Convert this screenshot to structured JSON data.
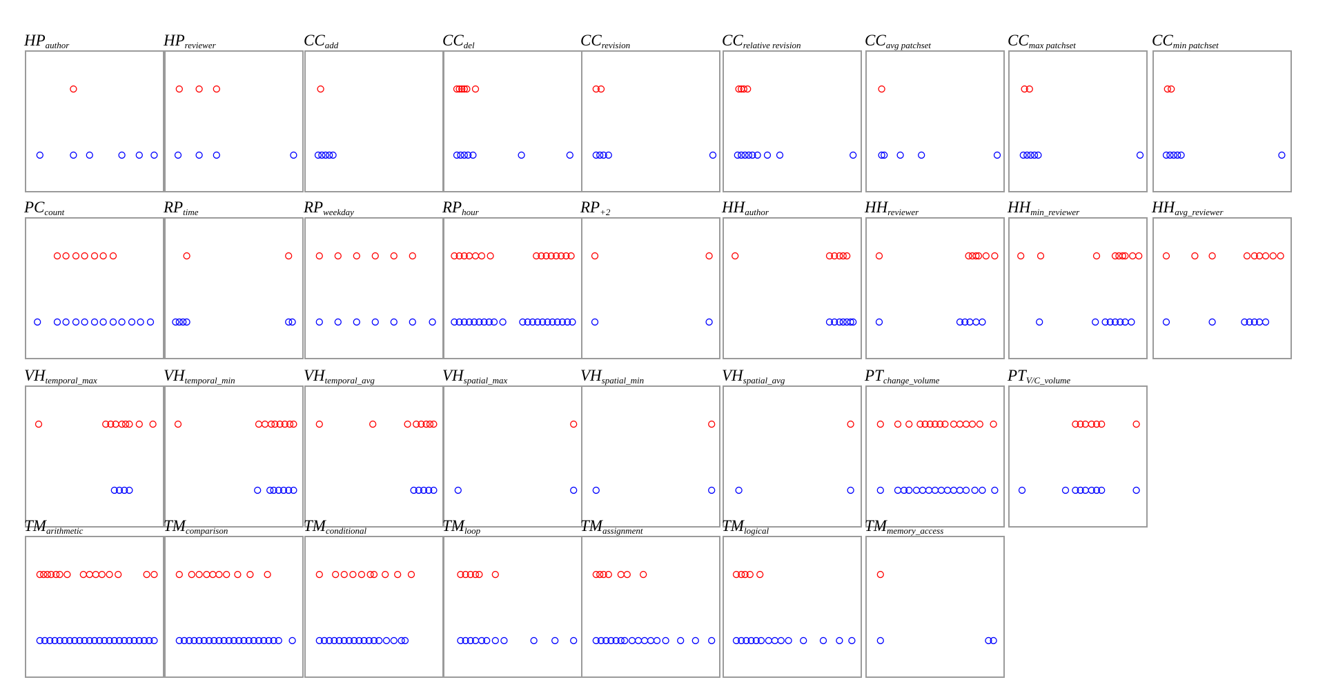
{
  "chart_data": [
    {
      "type": "strip",
      "title": "HP",
      "title_sub": "author",
      "xlim": [
        0,
        100
      ],
      "series": [
        {
          "color": "#ff0000",
          "values": [
            33
          ]
        },
        {
          "color": "#0000ff",
          "values": [
            6,
            33,
            46,
            72,
            86,
            98
          ]
        }
      ]
    },
    {
      "type": "strip",
      "title": "HP",
      "title_sub": "reviewer",
      "xlim": [
        0,
        100
      ],
      "series": [
        {
          "color": "#ff0000",
          "values": [
            6,
            22,
            36
          ]
        },
        {
          "color": "#0000ff",
          "values": [
            5,
            22,
            36,
            98
          ]
        }
      ]
    },
    {
      "type": "strip",
      "title": "CC",
      "title_sub": "add",
      "xlim": [
        0,
        100
      ],
      "series": [
        {
          "color": "#ff0000",
          "values": [
            7
          ]
        },
        {
          "color": "#0000ff",
          "values": [
            5,
            8,
            11,
            14,
            17
          ]
        }
      ]
    },
    {
      "type": "strip",
      "title": "CC",
      "title_sub": "del",
      "xlim": [
        0,
        100
      ],
      "series": [
        {
          "color": "#ff0000",
          "values": [
            5,
            7,
            9,
            11,
            13,
            20
          ]
        },
        {
          "color": "#0000ff",
          "values": [
            5,
            8,
            11,
            14,
            18,
            57,
            96
          ]
        }
      ]
    },
    {
      "type": "strip",
      "title": "CC",
      "title_sub": "revision",
      "xlim": [
        0,
        100
      ],
      "series": [
        {
          "color": "#ff0000",
          "values": [
            6,
            10
          ]
        },
        {
          "color": "#0000ff",
          "values": [
            6,
            9,
            12,
            16,
            100
          ]
        }
      ]
    },
    {
      "type": "strip",
      "title": "CC",
      "title_sub": "relative revision",
      "xlim": [
        0,
        100
      ],
      "series": [
        {
          "color": "#ff0000",
          "values": [
            7,
            9,
            11,
            14
          ]
        },
        {
          "color": "#0000ff",
          "values": [
            6,
            9,
            12,
            15,
            18,
            22,
            30,
            40,
            99
          ]
        }
      ]
    },
    {
      "type": "strip",
      "title": "CC",
      "title_sub": "avg patchset",
      "xlim": [
        0,
        100
      ],
      "series": [
        {
          "color": "#ff0000",
          "values": [
            7
          ]
        },
        {
          "color": "#0000ff",
          "values": [
            7,
            9,
            22,
            39,
            100
          ]
        }
      ]
    },
    {
      "type": "strip",
      "title": "CC",
      "title_sub": "max patchset",
      "xlim": [
        0,
        100
      ],
      "series": [
        {
          "color": "#ff0000",
          "values": [
            7,
            11
          ]
        },
        {
          "color": "#0000ff",
          "values": [
            6,
            9,
            12,
            15,
            18,
            100
          ]
        }
      ]
    },
    {
      "type": "strip",
      "title": "CC",
      "title_sub": "min patchset",
      "xlim": [
        0,
        100
      ],
      "series": [
        {
          "color": "#ff0000",
          "values": [
            6,
            9
          ]
        },
        {
          "color": "#0000ff",
          "values": [
            5,
            8,
            11,
            14,
            17,
            98
          ]
        }
      ]
    },
    {
      "type": "strip",
      "title": "PC",
      "title_sub": "count",
      "xlim": [
        0,
        100
      ],
      "series": [
        {
          "color": "#ff0000",
          "values": [
            20,
            27,
            35,
            42,
            50,
            57,
            65
          ]
        },
        {
          "color": "#0000ff",
          "values": [
            4,
            20,
            27,
            35,
            42,
            50,
            57,
            65,
            72,
            80,
            87,
            95
          ]
        }
      ]
    },
    {
      "type": "strip",
      "title": "RP",
      "title_sub": "time",
      "xlim": [
        0,
        100
      ],
      "series": [
        {
          "color": "#ff0000",
          "values": [
            12,
            94
          ]
        },
        {
          "color": "#0000ff",
          "values": [
            3,
            6,
            9,
            12,
            94,
            97
          ]
        }
      ]
    },
    {
      "type": "strip",
      "title": "RP",
      "title_sub": "weekday",
      "xlim": [
        0,
        100
      ],
      "series": [
        {
          "color": "#ff0000",
          "values": [
            6,
            21,
            36,
            51,
            66,
            81
          ]
        },
        {
          "color": "#0000ff",
          "values": [
            6,
            21,
            36,
            51,
            66,
            81,
            97
          ]
        }
      ]
    },
    {
      "type": "strip",
      "title": "RP",
      "title_sub": "hour",
      "xlim": [
        0,
        100
      ],
      "series": [
        {
          "color": "#ff0000",
          "values": [
            3,
            7,
            11,
            15,
            20,
            25,
            32,
            69,
            73,
            77,
            81,
            85,
            89,
            93,
            97
          ]
        },
        {
          "color": "#0000ff",
          "values": [
            3,
            7,
            11,
            15,
            19,
            23,
            27,
            31,
            35,
            42,
            58,
            62,
            66,
            70,
            74,
            78,
            82,
            86,
            90,
            94,
            98
          ]
        }
      ]
    },
    {
      "type": "strip",
      "title": "RP",
      "title_sub": "+2",
      "xlim": [
        0,
        100
      ],
      "series": [
        {
          "color": "#ff0000",
          "values": [
            5,
            97
          ]
        },
        {
          "color": "#0000ff",
          "values": [
            5,
            97
          ]
        }
      ]
    },
    {
      "type": "strip",
      "title": "HH",
      "title_sub": "author",
      "xlim": [
        0,
        100
      ],
      "series": [
        {
          "color": "#ff0000",
          "values": [
            4,
            80,
            84,
            88,
            91,
            94
          ]
        },
        {
          "color": "#0000ff",
          "values": [
            80,
            84,
            88,
            91,
            94,
            97,
            99
          ]
        }
      ]
    },
    {
      "type": "strip",
      "title": "HH",
      "title_sub": "reviewer",
      "xlim": [
        0,
        100
      ],
      "series": [
        {
          "color": "#ff0000",
          "values": [
            5,
            77,
            80,
            83,
            85,
            91,
            98
          ]
        },
        {
          "color": "#0000ff",
          "values": [
            5,
            70,
            74,
            78,
            83,
            88
          ]
        }
      ]
    },
    {
      "type": "strip",
      "title": "HH",
      "title_sub": "min_reviewer",
      "xlim": [
        0,
        100
      ],
      "series": [
        {
          "color": "#ff0000",
          "values": [
            4,
            20,
            65,
            80,
            83,
            86,
            88,
            94,
            99
          ]
        },
        {
          "color": "#0000ff",
          "values": [
            19,
            64,
            72,
            76,
            80,
            84,
            88,
            93
          ]
        }
      ]
    },
    {
      "type": "strip",
      "title": "HH",
      "title_sub": "avg_reviewer",
      "xlim": [
        0,
        100
      ],
      "series": [
        {
          "color": "#ff0000",
          "values": [
            5,
            28,
            42,
            70,
            76,
            80,
            85,
            91,
            97
          ]
        },
        {
          "color": "#0000ff",
          "values": [
            5,
            42,
            68,
            72,
            76,
            80,
            85
          ]
        }
      ]
    },
    {
      "type": "strip",
      "title": "VH",
      "title_sub": "temporal_max",
      "xlim": [
        0,
        100
      ],
      "series": [
        {
          "color": "#ff0000",
          "values": [
            5,
            59,
            63,
            67,
            72,
            75,
            78,
            86,
            97
          ]
        },
        {
          "color": "#0000ff",
          "values": [
            66,
            70,
            74,
            78
          ]
        }
      ]
    },
    {
      "type": "strip",
      "title": "VH",
      "title_sub": "temporal_min",
      "xlim": [
        0,
        100
      ],
      "series": [
        {
          "color": "#ff0000",
          "values": [
            5,
            70,
            75,
            80,
            83,
            87,
            91,
            95,
            98
          ]
        },
        {
          "color": "#0000ff",
          "values": [
            69,
            79,
            82,
            86,
            90,
            94,
            98
          ]
        }
      ]
    },
    {
      "type": "strip",
      "title": "VH",
      "title_sub": "temporal_avg",
      "xlim": [
        0,
        100
      ],
      "series": [
        {
          "color": "#ff0000",
          "values": [
            6,
            49,
            77,
            84,
            88,
            92,
            95,
            98
          ]
        },
        {
          "color": "#0000ff",
          "values": [
            82,
            86,
            90,
            94,
            98
          ]
        }
      ]
    },
    {
      "type": "strip",
      "title": "VH",
      "title_sub": "spatial_max",
      "xlim": [
        0,
        100
      ],
      "series": [
        {
          "color": "#ff0000",
          "values": [
            99
          ]
        },
        {
          "color": "#0000ff",
          "values": [
            6,
            99
          ]
        }
      ]
    },
    {
      "type": "strip",
      "title": "VH",
      "title_sub": "spatial_min",
      "xlim": [
        0,
        100
      ],
      "series": [
        {
          "color": "#ff0000",
          "values": [
            99
          ]
        },
        {
          "color": "#0000ff",
          "values": [
            6,
            99
          ]
        }
      ]
    },
    {
      "type": "strip",
      "title": "VH",
      "title_sub": "spatial_avg",
      "xlim": [
        0,
        100
      ],
      "series": [
        {
          "color": "#ff0000",
          "values": [
            97
          ]
        },
        {
          "color": "#0000ff",
          "values": [
            7,
            97
          ]
        }
      ]
    },
    {
      "type": "strip",
      "title": "PT",
      "title_sub": "change_volume",
      "xlim": [
        0,
        100
      ],
      "series": [
        {
          "color": "#ff0000",
          "values": [
            6,
            20,
            29,
            38,
            42,
            46,
            50,
            54,
            58,
            65,
            70,
            75,
            80,
            86,
            97
          ]
        },
        {
          "color": "#0000ff",
          "values": [
            6,
            20,
            25,
            29,
            35,
            40,
            45,
            50,
            55,
            60,
            65,
            70,
            75,
            82,
            88,
            98
          ]
        }
      ]
    },
    {
      "type": "strip",
      "title": "PT",
      "title_sub": "V/C_volume",
      "xlim": [
        0,
        100
      ],
      "series": [
        {
          "color": "#ff0000",
          "values": [
            48,
            52,
            56,
            61,
            65,
            69,
            97
          ]
        },
        {
          "color": "#0000ff",
          "values": [
            5,
            40,
            48,
            52,
            56,
            61,
            65,
            69,
            97
          ]
        }
      ]
    },
    {
      "type": "strip",
      "title": "TM",
      "title_sub": "arithmetic",
      "xlim": [
        0,
        100
      ],
      "series": [
        {
          "color": "#ff0000",
          "values": [
            6,
            9,
            12,
            15,
            19,
            22,
            28,
            41,
            46,
            51,
            56,
            62,
            69,
            92,
            98
          ]
        },
        {
          "color": "#0000ff",
          "values": [
            6,
            10,
            14,
            18,
            22,
            26,
            30,
            34,
            38,
            42,
            46,
            50,
            54,
            58,
            62,
            66,
            70,
            74,
            78,
            82,
            86,
            90,
            94,
            98
          ]
        }
      ]
    },
    {
      "type": "strip",
      "title": "TM",
      "title_sub": "comparison",
      "xlim": [
        0,
        100
      ],
      "series": [
        {
          "color": "#ff0000",
          "values": [
            6,
            16,
            22,
            28,
            33,
            38,
            44,
            53,
            63,
            77
          ]
        },
        {
          "color": "#0000ff",
          "values": [
            6,
            10,
            14,
            18,
            22,
            26,
            30,
            34,
            38,
            42,
            46,
            50,
            54,
            58,
            62,
            66,
            70,
            74,
            78,
            82,
            86,
            97
          ]
        }
      ]
    },
    {
      "type": "strip",
      "title": "TM",
      "title_sub": "conditional",
      "xlim": [
        0,
        100
      ],
      "series": [
        {
          "color": "#ff0000",
          "values": [
            6,
            19,
            26,
            33,
            40,
            47,
            50,
            59,
            69,
            80
          ]
        },
        {
          "color": "#0000ff",
          "values": [
            6,
            10,
            14,
            18,
            22,
            26,
            30,
            34,
            38,
            42,
            46,
            50,
            54,
            60,
            66,
            72,
            75
          ]
        }
      ]
    },
    {
      "type": "strip",
      "title": "TM",
      "title_sub": "loop",
      "xlim": [
        0,
        100
      ],
      "series": [
        {
          "color": "#ff0000",
          "values": [
            8,
            12,
            16,
            20,
            23,
            36
          ]
        },
        {
          "color": "#0000ff",
          "values": [
            8,
            12,
            16,
            20,
            25,
            29,
            36,
            43,
            67,
            84,
            99
          ]
        }
      ]
    },
    {
      "type": "strip",
      "title": "TM",
      "title_sub": "assignment",
      "xlim": [
        0,
        100
      ],
      "series": [
        {
          "color": "#ff0000",
          "values": [
            6,
            9,
            12,
            16,
            26,
            31,
            44
          ]
        },
        {
          "color": "#0000ff",
          "values": [
            6,
            10,
            14,
            18,
            22,
            26,
            29,
            35,
            40,
            45,
            50,
            55,
            62,
            74,
            86,
            99
          ]
        }
      ]
    },
    {
      "type": "strip",
      "title": "TM",
      "title_sub": "logical",
      "xlim": [
        0,
        100
      ],
      "series": [
        {
          "color": "#ff0000",
          "values": [
            5,
            9,
            12,
            16,
            24
          ]
        },
        {
          "color": "#0000ff",
          "values": [
            5,
            9,
            13,
            17,
            21,
            25,
            31,
            36,
            41,
            47,
            59,
            75,
            88,
            98
          ]
        }
      ]
    },
    {
      "type": "strip",
      "title": "TM",
      "title_sub": "memory_access",
      "xlim": [
        0,
        100
      ],
      "series": [
        {
          "color": "#ff0000",
          "values": [
            6
          ]
        },
        {
          "color": "#0000ff",
          "values": [
            6,
            93,
            97
          ]
        }
      ]
    }
  ]
}
